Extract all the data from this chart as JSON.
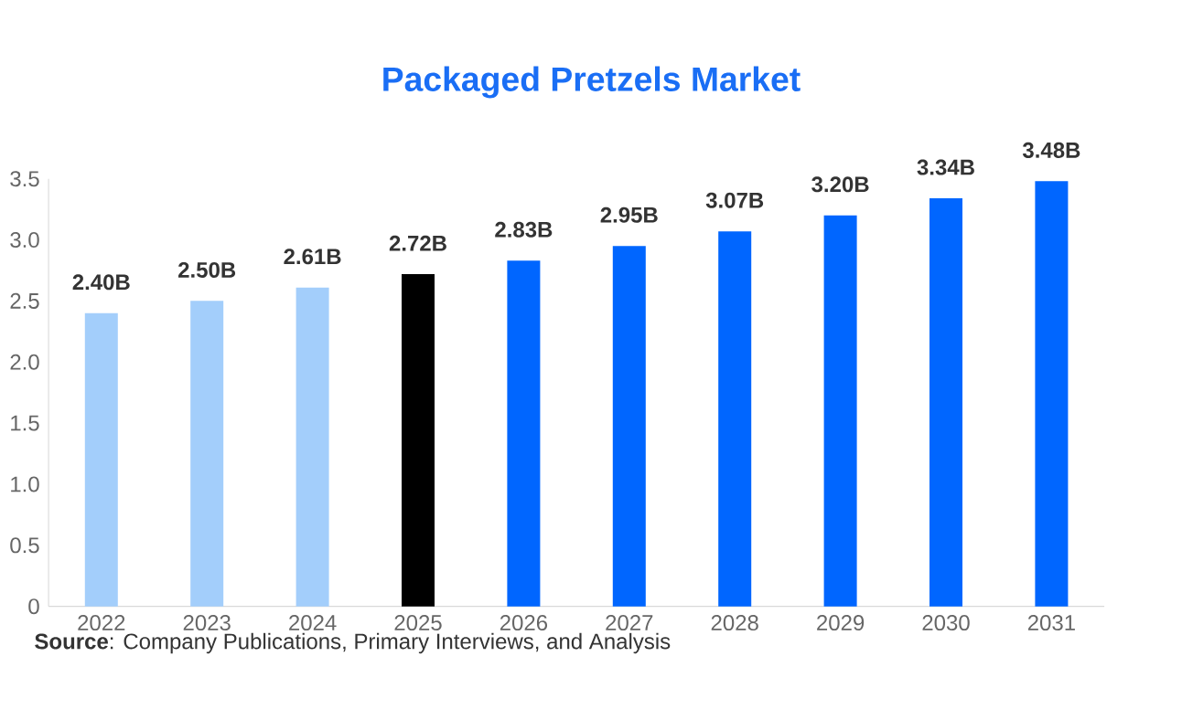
{
  "chart_data": {
    "type": "bar",
    "title": "Packaged Pretzels Market",
    "categories": [
      "2022",
      "2023",
      "2024",
      "2025",
      "2026",
      "2027",
      "2028",
      "2029",
      "2030",
      "2031"
    ],
    "values": [
      2.4,
      2.5,
      2.61,
      2.72,
      2.83,
      2.95,
      3.07,
      3.2,
      3.34,
      3.48
    ],
    "colors": [
      "#a3cefb",
      "#a3cefb",
      "#a3cefb",
      "#000000",
      "#0066ff",
      "#0066ff",
      "#0066ff",
      "#0066ff",
      "#0066ff",
      "#0066ff"
    ],
    "value_labels": [
      "2.40B",
      "2.50B",
      "2.61B",
      "2.72B",
      "2.83B",
      "2.95B",
      "3.07B",
      "3.20B",
      "3.34B",
      "3.48B"
    ],
    "ylim": [
      0,
      3.5
    ],
    "yticks": [
      0,
      {
        "value": 0.5,
        "label": "0.5"
      },
      {
        "value": 1,
        "label": "1.0"
      },
      {
        "value": 1.5,
        "label": "1.5"
      },
      {
        "value": 2,
        "label": "2.0"
      },
      {
        "value": 2.5,
        "label": "2.5"
      },
      {
        "value": 3,
        "label": "3.0"
      },
      3.5
    ],
    "annotations": [
      "**Source**: Company Publications, Primary Interviews, and Analysis"
    ]
  }
}
